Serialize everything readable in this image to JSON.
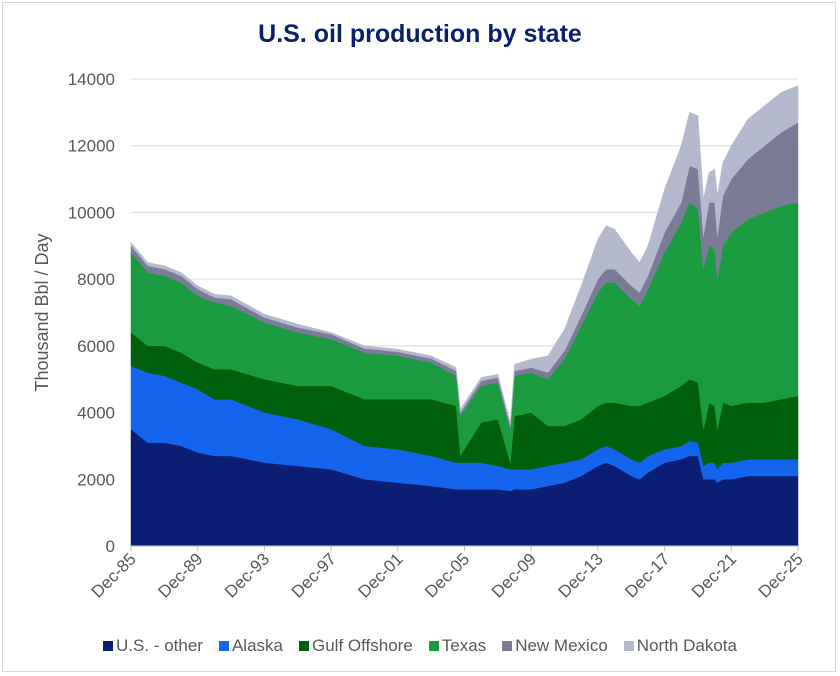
{
  "chart_data": {
    "type": "area",
    "stacked": true,
    "title": "U.S. oil production by state",
    "ylabel": "Thousand Bbl / Day",
    "xlabel": "",
    "ylim": [
      0,
      14000
    ],
    "yticks": [
      0,
      2000,
      4000,
      6000,
      8000,
      10000,
      12000,
      14000
    ],
    "xticks": [
      "Dec-85",
      "Dec-89",
      "Dec-93",
      "Dec-97",
      "Dec-01",
      "Dec-05",
      "Dec-09",
      "Dec-13",
      "Dec-17",
      "Dec-21",
      "Dec-25"
    ],
    "grid": "horizontal",
    "legend": "bottom",
    "x": [
      "1985-12",
      "1986-12",
      "1987-12",
      "1988-12",
      "1989-12",
      "1990-12",
      "1991-12",
      "1993-12",
      "1995-12",
      "1997-12",
      "1999-12",
      "2001-12",
      "2003-12",
      "2005-06",
      "2005-09",
      "2006-12",
      "2007-12",
      "2008-09",
      "2008-12",
      "2009-12",
      "2010-12",
      "2011-12",
      "2012-12",
      "2013-12",
      "2014-06",
      "2014-12",
      "2015-12",
      "2016-06",
      "2016-12",
      "2017-12",
      "2018-12",
      "2019-06",
      "2019-12",
      "2020-04",
      "2020-08",
      "2020-12",
      "2021-02",
      "2021-06",
      "2021-12",
      "2022-12",
      "2023-12",
      "2024-12",
      "2025-12"
    ],
    "series": [
      {
        "name": "U.S. - other",
        "color": "#0a1f73",
        "values": [
          3500,
          3100,
          3100,
          3000,
          2800,
          2700,
          2700,
          2500,
          2400,
          2300,
          2000,
          1900,
          1800,
          1700,
          1700,
          1700,
          1700,
          1650,
          1700,
          1700,
          1800,
          1900,
          2100,
          2400,
          2500,
          2400,
          2100,
          2000,
          2200,
          2500,
          2600,
          2700,
          2700,
          2000,
          2000,
          2000,
          1900,
          2000,
          2000,
          2100,
          2100,
          2100,
          2100
        ]
      },
      {
        "name": "Alaska",
        "color": "#1464ee",
        "values": [
          1900,
          2100,
          2000,
          1900,
          1900,
          1700,
          1700,
          1500,
          1400,
          1200,
          1000,
          1000,
          900,
          800,
          800,
          800,
          700,
          650,
          600,
          600,
          600,
          600,
          500,
          500,
          500,
          500,
          500,
          500,
          500,
          400,
          400,
          450,
          400,
          400,
          500,
          500,
          400,
          500,
          500,
          500,
          500,
          500,
          500
        ]
      },
      {
        "name": "Gulf Offshore",
        "color": "#005f0a",
        "values": [
          1000,
          800,
          900,
          900,
          800,
          900,
          900,
          1000,
          1000,
          1300,
          1400,
          1500,
          1700,
          1700,
          200,
          1200,
          1400,
          200,
          1600,
          1700,
          1200,
          1100,
          1200,
          1300,
          1300,
          1400,
          1600,
          1700,
          1600,
          1600,
          1800,
          1850,
          1800,
          1100,
          1800,
          1700,
          1200,
          1800,
          1700,
          1700,
          1700,
          1800,
          1900
        ]
      },
      {
        "name": "Texas",
        "color": "#1a9b3f",
        "values": [
          2400,
          2200,
          2100,
          2100,
          2000,
          2000,
          1900,
          1700,
          1600,
          1400,
          1400,
          1300,
          1100,
          900,
          1200,
          1100,
          1100,
          1000,
          1200,
          1200,
          1400,
          2000,
          2800,
          3400,
          3600,
          3600,
          3200,
          3000,
          3400,
          4300,
          4900,
          5300,
          5200,
          4800,
          4700,
          4700,
          4500,
          4700,
          5200,
          5500,
          5700,
          5800,
          5800
        ]
      },
      {
        "name": "New Mexico",
        "color": "#7a7b96",
        "values": [
          200,
          200,
          200,
          200,
          200,
          150,
          200,
          150,
          150,
          150,
          120,
          120,
          120,
          150,
          100,
          150,
          150,
          100,
          150,
          150,
          200,
          250,
          300,
          400,
          400,
          400,
          400,
          400,
          400,
          600,
          600,
          1100,
          1200,
          1000,
          1300,
          1400,
          1300,
          1500,
          1600,
          1800,
          2000,
          2200,
          2400
        ]
      },
      {
        "name": "North Dakota",
        "color": "#b5b9cd",
        "values": [
          100,
          100,
          100,
          100,
          100,
          100,
          100,
          100,
          100,
          50,
          80,
          80,
          80,
          100,
          100,
          100,
          100,
          100,
          200,
          250,
          500,
          650,
          900,
          1200,
          1300,
          1200,
          1000,
          900,
          900,
          1300,
          1700,
          1600,
          1600,
          1100,
          900,
          1000,
          1200,
          1000,
          1000,
          1200,
          1200,
          1200,
          1100
        ]
      }
    ]
  }
}
